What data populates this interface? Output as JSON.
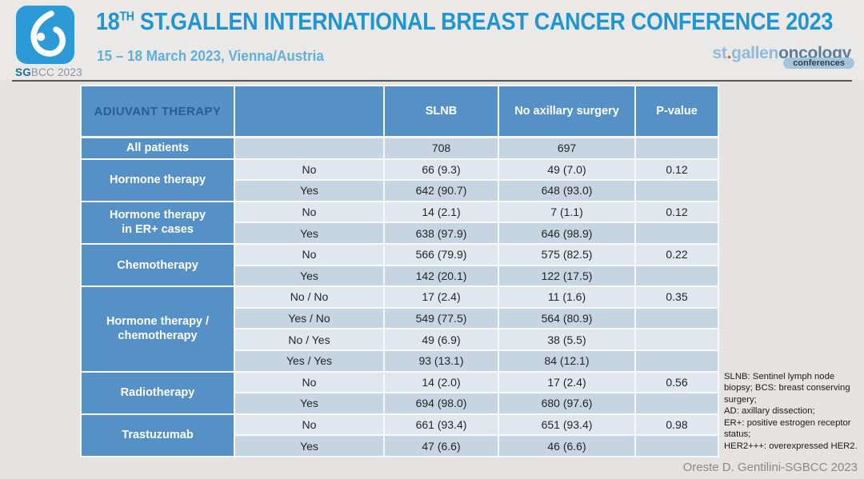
{
  "header": {
    "title_num": "18",
    "title_sup": "TH",
    "title_rest": " ST.GALLEN INTERNATIONAL BREAST CANCER CONFERENCE 2023",
    "subtitle": "15 – 18 March 2023, Vienna/Austria",
    "logo_caption_bold": "SG",
    "logo_caption_rest": "BCC 2023",
    "right_logo": {
      "st": "st",
      "dot": ".",
      "gallen": "gallen",
      "oncology": "oncology",
      "badge": "conferences"
    }
  },
  "table": {
    "columns": [
      "ADIUVANT THERAPY",
      "",
      "SLNB",
      "No axillary surgery",
      "P-value"
    ],
    "groups": [
      {
        "label": "All patients",
        "rows": [
          [
            "",
            "708",
            "697",
            ""
          ]
        ]
      },
      {
        "label": "Hormone therapy",
        "rows": [
          [
            "No",
            "66 (9.3)",
            "49 (7.0)",
            "0.12"
          ],
          [
            "Yes",
            "642 (90.7)",
            "648 (93.0)",
            ""
          ]
        ]
      },
      {
        "label": "Hormone therapy\nin ER+ cases",
        "rows": [
          [
            "No",
            "14 (2.1)",
            "7 (1.1)",
            "0.12"
          ],
          [
            "Yes",
            "638 (97.9)",
            "646 (98.9)",
            ""
          ]
        ]
      },
      {
        "label": "Chemotherapy",
        "rows": [
          [
            "No",
            "566 (79.9)",
            "575 (82.5)",
            "0.22"
          ],
          [
            "Yes",
            "142 (20.1)",
            "122 (17.5)",
            ""
          ]
        ]
      },
      {
        "label": "Hormone therapy /\nchemotherapy",
        "rows": [
          [
            "No / No",
            "17 (2.4)",
            "11 (1.6)",
            "0.35"
          ],
          [
            "Yes / No",
            "549 (77.5)",
            "564 (80.9)",
            ""
          ],
          [
            "No / Yes",
            "49 (6.9)",
            "38 (5.5)",
            ""
          ],
          [
            "Yes / Yes",
            "93 (13.1)",
            "84 (12.1)",
            ""
          ]
        ]
      },
      {
        "label": "Radiotherapy",
        "rows": [
          [
            "No",
            "14 (2.0)",
            "17 (2.4)",
            "0.56"
          ],
          [
            "Yes",
            "694 (98.0)",
            "680 (97.6)",
            ""
          ]
        ]
      },
      {
        "label": "Trastuzumab",
        "rows": [
          [
            "No",
            "661 (93.4)",
            "651 (93.4)",
            "0.98"
          ],
          [
            "Yes",
            "47 (6.6)",
            "46 (6.6)",
            ""
          ]
        ]
      }
    ]
  },
  "footnote": "SLNB: Sentinel lymph node biopsy; BCS: breast conserving surgery;\nAD: axillary dissection;\nER+: positive estrogen receptor status;\nHER2+++: overexpressed HER2.",
  "credit": "Oreste D. Gentilini-SGBCC 2023",
  "colors": {
    "slide-bg": "#e4e3e2",
    "band-bg": "#ebe9e8",
    "title-blue": "#1e96d3",
    "subtitle-blue": "#5fb0d8",
    "logo-blue": "#2b9ad6",
    "sg-blue": "#1e6fa5",
    "stgallen-blue": "#8fbcda",
    "oncology-slate": "#5b7e9c",
    "dot-orange": "#cf5b38",
    "pill-bg": "#a3c6dc",
    "header-blue": "#5591c6",
    "header-text-dark": "#255f96",
    "row-dark": "#c7d4e1",
    "row-light": "#dfe7ef",
    "gap-white": "#f7f8f9"
  }
}
